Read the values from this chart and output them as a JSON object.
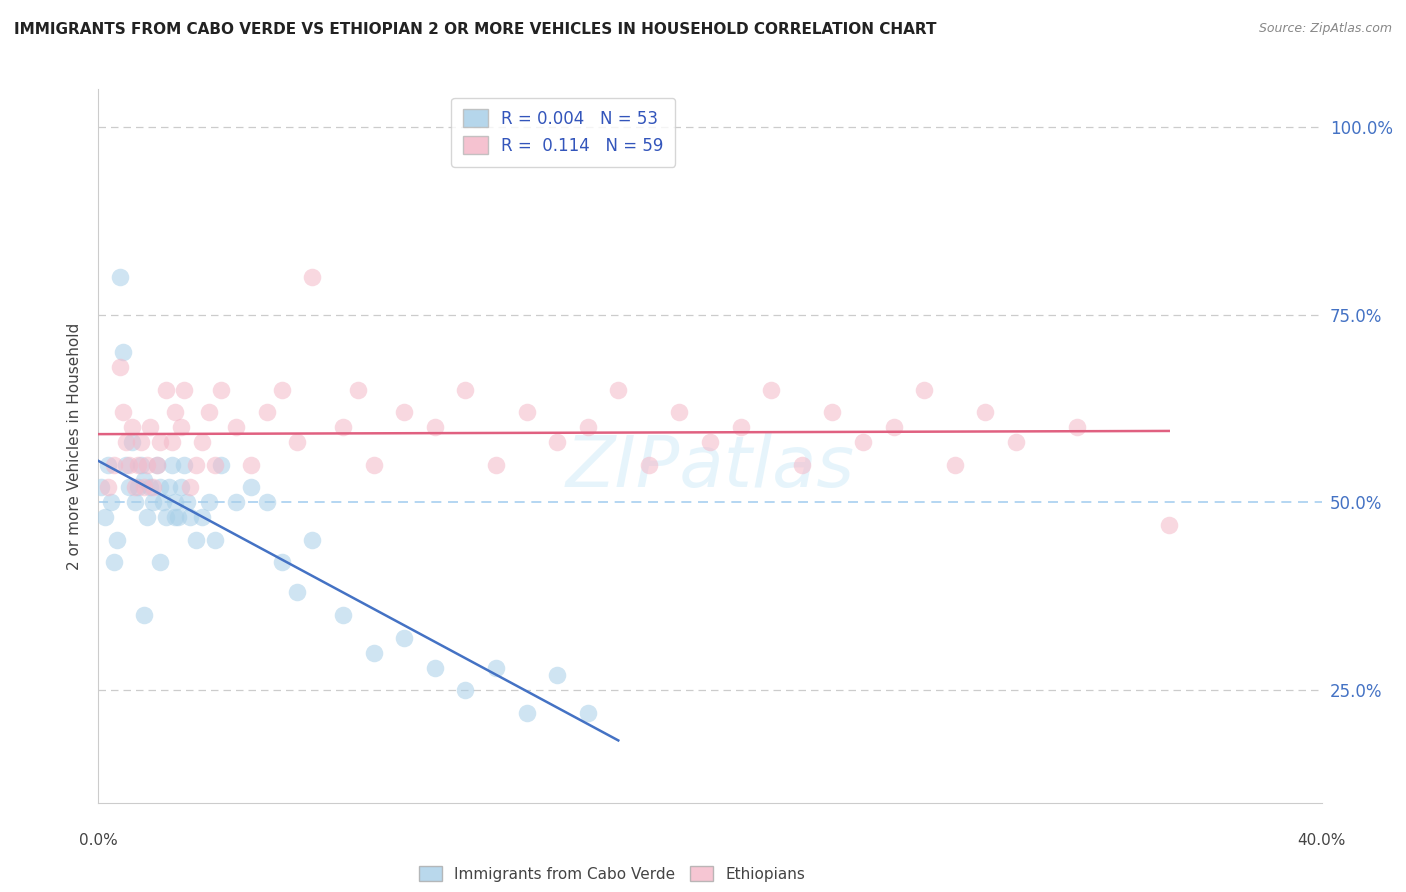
{
  "title": "IMMIGRANTS FROM CABO VERDE VS ETHIOPIAN 2 OR MORE VEHICLES IN HOUSEHOLD CORRELATION CHART",
  "source": "Source: ZipAtlas.com",
  "ylabel": "2 or more Vehicles in Household",
  "ytick_labels": [
    "100.0%",
    "75.0%",
    "50.0%",
    "25.0%"
  ],
  "ytick_values": [
    1.0,
    0.75,
    0.5,
    0.25
  ],
  "xlim": [
    0.0,
    0.4
  ],
  "ylim": [
    0.1,
    1.05
  ],
  "legend_label1_R": 0.004,
  "legend_label1_N": 53,
  "legend_label2_R": 0.114,
  "legend_label2_N": 59,
  "color_blue": "#a8cfe8",
  "color_pink": "#f4b8c8",
  "line_color_blue": "#4472c4",
  "line_color_pink": "#e06080",
  "grid_color": "#cccccc",
  "legend_bottom_label1": "Immigrants from Cabo Verde",
  "legend_bottom_label2": "Ethiopians",
  "blue_x": [
    0.001,
    0.002,
    0.003,
    0.004,
    0.005,
    0.006,
    0.007,
    0.008,
    0.009,
    0.01,
    0.011,
    0.012,
    0.013,
    0.014,
    0.015,
    0.016,
    0.017,
    0.018,
    0.019,
    0.02,
    0.021,
    0.022,
    0.023,
    0.024,
    0.025,
    0.026,
    0.027,
    0.028,
    0.029,
    0.03,
    0.032,
    0.034,
    0.036,
    0.038,
    0.04,
    0.045,
    0.05,
    0.055,
    0.06,
    0.065,
    0.07,
    0.08,
    0.09,
    0.1,
    0.11,
    0.12,
    0.13,
    0.14,
    0.15,
    0.16,
    0.015,
    0.02,
    0.025
  ],
  "blue_y": [
    0.52,
    0.48,
    0.55,
    0.5,
    0.42,
    0.45,
    0.8,
    0.7,
    0.55,
    0.52,
    0.58,
    0.5,
    0.52,
    0.55,
    0.53,
    0.48,
    0.52,
    0.5,
    0.55,
    0.52,
    0.5,
    0.48,
    0.52,
    0.55,
    0.5,
    0.48,
    0.52,
    0.55,
    0.5,
    0.48,
    0.45,
    0.48,
    0.5,
    0.45,
    0.55,
    0.5,
    0.52,
    0.5,
    0.42,
    0.38,
    0.45,
    0.35,
    0.3,
    0.32,
    0.28,
    0.25,
    0.28,
    0.22,
    0.27,
    0.22,
    0.35,
    0.42,
    0.48
  ],
  "pink_x": [
    0.003,
    0.005,
    0.007,
    0.008,
    0.009,
    0.01,
    0.011,
    0.012,
    0.013,
    0.014,
    0.015,
    0.016,
    0.017,
    0.018,
    0.019,
    0.02,
    0.022,
    0.024,
    0.025,
    0.027,
    0.028,
    0.03,
    0.032,
    0.034,
    0.036,
    0.038,
    0.04,
    0.045,
    0.05,
    0.055,
    0.06,
    0.065,
    0.07,
    0.08,
    0.085,
    0.09,
    0.1,
    0.11,
    0.12,
    0.13,
    0.14,
    0.15,
    0.16,
    0.17,
    0.18,
    0.19,
    0.2,
    0.21,
    0.22,
    0.23,
    0.24,
    0.25,
    0.26,
    0.27,
    0.28,
    0.29,
    0.3,
    0.32,
    0.35
  ],
  "pink_y": [
    0.52,
    0.55,
    0.68,
    0.62,
    0.58,
    0.55,
    0.6,
    0.52,
    0.55,
    0.58,
    0.52,
    0.55,
    0.6,
    0.52,
    0.55,
    0.58,
    0.65,
    0.58,
    0.62,
    0.6,
    0.65,
    0.52,
    0.55,
    0.58,
    0.62,
    0.55,
    0.65,
    0.6,
    0.55,
    0.62,
    0.65,
    0.58,
    0.8,
    0.6,
    0.65,
    0.55,
    0.62,
    0.6,
    0.65,
    0.55,
    0.62,
    0.58,
    0.6,
    0.65,
    0.55,
    0.62,
    0.58,
    0.6,
    0.65,
    0.55,
    0.62,
    0.58,
    0.6,
    0.65,
    0.55,
    0.62,
    0.58,
    0.6,
    0.47
  ]
}
